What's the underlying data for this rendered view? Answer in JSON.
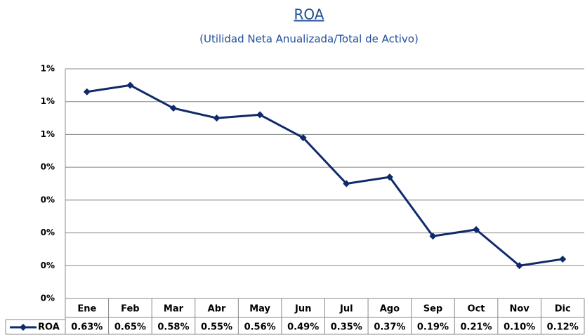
{
  "chart_data": {
    "type": "line",
    "title": "ROA",
    "subtitle": "(Utilidad Neta Anualizada/Total de Activo)",
    "categories": [
      "Ene",
      "Feb",
      "Mar",
      "Abr",
      "May",
      "Jun",
      "Jul",
      "Ago",
      "Sep",
      "Oct",
      "Nov",
      "Dic"
    ],
    "series": [
      {
        "name": "ROA",
        "color": "#0f2a6b",
        "values": [
          0.63,
          0.65,
          0.58,
          0.55,
          0.56,
          0.49,
          0.35,
          0.37,
          0.19,
          0.21,
          0.1,
          0.12
        ],
        "value_labels": [
          "0.63%",
          "0.65%",
          "0.58%",
          "0.55%",
          "0.56%",
          "0.49%",
          "0.35%",
          "0.37%",
          "0.19%",
          "0.21%",
          "0.10%",
          "0.12%"
        ]
      }
    ],
    "ylim": [
      0,
      0.7
    ],
    "yticks": [
      {
        "value": 0,
        "label": "0%"
      },
      {
        "value": 0.1,
        "label": "0%"
      },
      {
        "value": 0.2,
        "label": "0%"
      },
      {
        "value": 0.3,
        "label": "0%"
      },
      {
        "value": 0.4,
        "label": "0%"
      },
      {
        "value": 0.5,
        "label": "1%"
      },
      {
        "value": 0.6,
        "label": "1%"
      },
      {
        "value": 0.7,
        "label": "1%"
      }
    ],
    "grid": true
  }
}
